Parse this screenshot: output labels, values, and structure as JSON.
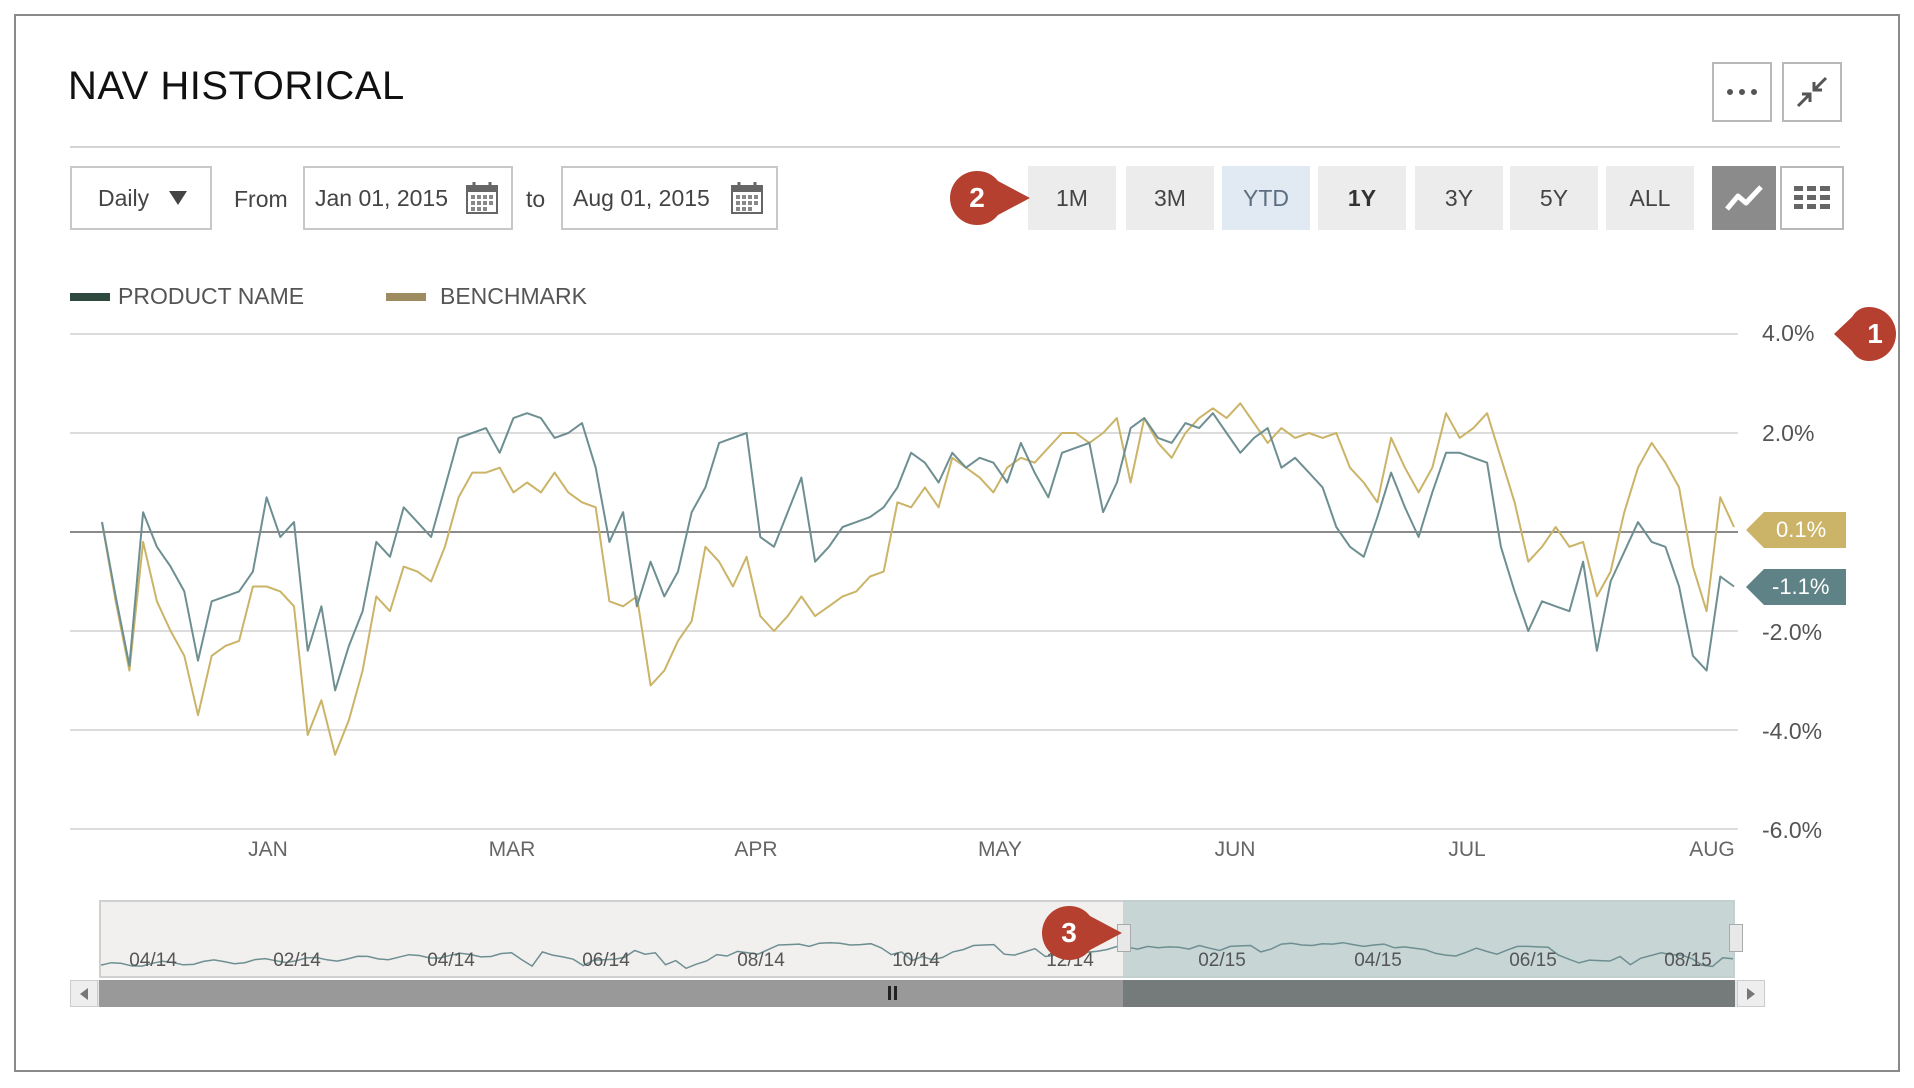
{
  "title": "NAV HISTORICAL",
  "controls": {
    "more_icon": "ellipsis-icon",
    "collapse_icon": "collapse-arrows-icon",
    "frequency": "Daily",
    "from_label": "From",
    "from_date": "Jan 01, 2015",
    "to_label": "to",
    "to_date": "Aug 01, 2015",
    "calendar_icon": "calendar-icon",
    "ranges": [
      "1M",
      "3M",
      "YTD",
      "1Y",
      "3Y",
      "5Y",
      "ALL"
    ],
    "highlighted_range": "YTD",
    "bold_range": "1Y",
    "line_view_icon": "line-chart-icon",
    "table_view_icon": "grid-icon"
  },
  "markers": [
    "1",
    "2",
    "3"
  ],
  "colors": {
    "product": "#6e8f92",
    "product_legend": "#2e4a3e",
    "benchmark": "#cbb467",
    "benchmark_legend": "#9e8c60",
    "marker": "#b5402f",
    "tag_benchmark": "#cbb467",
    "tag_product": "#5e8285"
  },
  "chart_data": {
    "type": "line",
    "legend": [
      "PRODUCT NAME",
      "BENCHMARK"
    ],
    "y_ticks": [
      "4.0%",
      "2.0%",
      "-2.0%",
      "-4.0%",
      "-6.0%"
    ],
    "ylim": [
      -6,
      4
    ],
    "x_ticks": [
      "JAN",
      "MAR",
      "APR",
      "MAY",
      "JUN",
      "JUL",
      "AUG"
    ],
    "end_labels": {
      "benchmark": "0.1%",
      "product": "-1.1%"
    },
    "series": [
      {
        "name": "PRODUCT NAME",
        "values": [
          0.2,
          -1.3,
          -2.7,
          0.4,
          -0.3,
          -0.7,
          -1.2,
          -2.6,
          -1.4,
          -1.3,
          -1.2,
          -0.8,
          0.7,
          -0.1,
          0.2,
          -2.4,
          -1.5,
          -3.2,
          -2.3,
          -1.6,
          -0.2,
          -0.5,
          0.5,
          0.2,
          -0.1,
          0.9,
          1.9,
          2.0,
          2.1,
          1.6,
          2.3,
          2.4,
          2.3,
          1.9,
          2.0,
          2.2,
          1.3,
          -0.2,
          0.4,
          -1.5,
          -0.6,
          -1.3,
          -0.8,
          0.4,
          0.9,
          1.8,
          1.9,
          2.0,
          -0.1,
          -0.3,
          0.4,
          1.1,
          -0.6,
          -0.3,
          0.1,
          0.2,
          0.3,
          0.5,
          0.9,
          1.6,
          1.4,
          1.0,
          1.6,
          1.3,
          1.5,
          1.4,
          1.0,
          1.8,
          1.2,
          0.7,
          1.6,
          1.7,
          1.8,
          0.4,
          1.0,
          2.1,
          2.3,
          1.9,
          1.8,
          2.2,
          2.1,
          2.4,
          2.0,
          1.6,
          1.9,
          2.1,
          1.3,
          1.5,
          1.2,
          0.9,
          0.1,
          -0.3,
          -0.5,
          0.3,
          1.2,
          0.5,
          -0.1,
          0.8,
          1.6,
          1.6,
          1.5,
          1.4,
          -0.3,
          -1.2,
          -2.0,
          -1.4,
          -1.5,
          -1.6,
          -0.6,
          -2.4,
          -1.0,
          -0.4,
          0.2,
          -0.2,
          -0.3,
          -1.1,
          -2.5,
          -2.8,
          -0.9,
          -1.1
        ]
      },
      {
        "name": "BENCHMARK",
        "values": [
          0.2,
          -1.4,
          -2.8,
          -0.2,
          -1.4,
          -2.0,
          -2.5,
          -3.7,
          -2.5,
          -2.3,
          -2.2,
          -1.1,
          -1.1,
          -1.2,
          -1.5,
          -4.1,
          -3.4,
          -4.5,
          -3.8,
          -2.8,
          -1.3,
          -1.6,
          -0.7,
          -0.8,
          -1.0,
          -0.3,
          0.7,
          1.2,
          1.2,
          1.3,
          0.8,
          1.0,
          0.8,
          1.2,
          0.8,
          0.6,
          0.5,
          -1.4,
          -1.5,
          -1.3,
          -3.1,
          -2.8,
          -2.2,
          -1.8,
          -0.3,
          -0.6,
          -1.1,
          -0.5,
          -1.7,
          -2.0,
          -1.7,
          -1.3,
          -1.7,
          -1.5,
          -1.3,
          -1.2,
          -0.9,
          -0.8,
          0.6,
          0.5,
          0.9,
          0.5,
          1.5,
          1.3,
          1.1,
          0.8,
          1.3,
          1.5,
          1.4,
          1.7,
          2.0,
          2.0,
          1.8,
          2.0,
          2.3,
          1.0,
          2.3,
          1.8,
          1.5,
          2.0,
          2.3,
          2.5,
          2.3,
          2.6,
          2.2,
          1.8,
          2.1,
          1.9,
          2.0,
          1.9,
          2.0,
          1.3,
          1.0,
          0.6,
          1.9,
          1.3,
          0.8,
          1.3,
          2.4,
          1.9,
          2.1,
          2.4,
          1.5,
          0.6,
          -0.6,
          -0.3,
          0.1,
          -0.3,
          -0.2,
          -1.3,
          -0.8,
          0.4,
          1.3,
          1.8,
          1.4,
          0.9,
          -0.7,
          -1.6,
          0.7,
          0.1
        ]
      }
    ]
  },
  "navigator": {
    "labels": [
      "04/14",
      "02/14",
      "04/14",
      "06/14",
      "08/14",
      "10/14",
      "12/14",
      "02/15",
      "04/15",
      "06/15",
      "08/15"
    ],
    "left_arrow": "scroll-left-icon",
    "right_arrow": "scroll-right-icon",
    "grip": "scrollbar-grip-icon"
  }
}
